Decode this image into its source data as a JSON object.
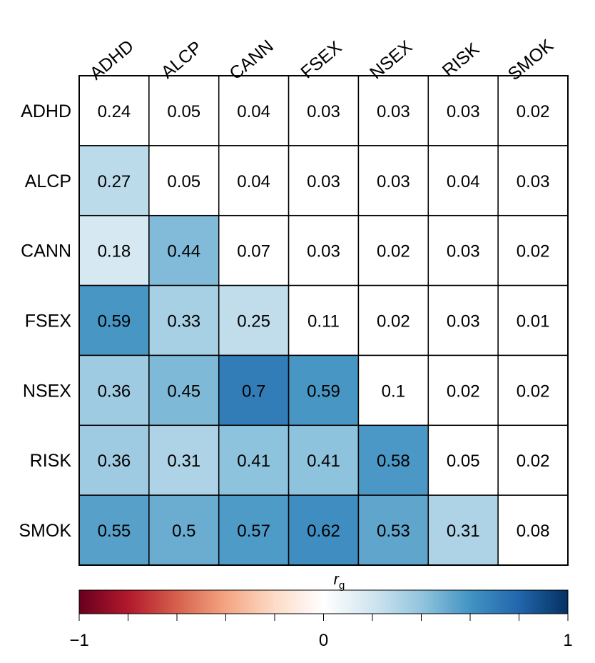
{
  "chart_data": {
    "type": "heatmap",
    "title": "",
    "xlabel": "",
    "ylabel": "",
    "columns": [
      "ADHD",
      "ALCP",
      "CANN",
      "FSEX",
      "NSEX",
      "RISK",
      "SMOK"
    ],
    "rows": [
      "ADHD",
      "ALCP",
      "CANN",
      "FSEX",
      "NSEX",
      "RISK",
      "SMOK"
    ],
    "values": [
      [
        "0.24",
        "0.05",
        "0.04",
        "0.03",
        "0.03",
        "0.03",
        "0.02"
      ],
      [
        "0.27",
        "0.05",
        "0.04",
        "0.03",
        "0.03",
        "0.04",
        "0.03"
      ],
      [
        "0.18",
        "0.44",
        "0.07",
        "0.03",
        "0.02",
        "0.03",
        "0.02"
      ],
      [
        "0.59",
        "0.33",
        "0.25",
        "0.11",
        "0.02",
        "0.03",
        "0.01"
      ],
      [
        "0.36",
        "0.45",
        "0.7",
        "0.59",
        "0.1",
        "0.02",
        "0.02"
      ],
      [
        "0.36",
        "0.31",
        "0.41",
        "0.41",
        "0.58",
        "0.05",
        "0.02"
      ],
      [
        "0.55",
        "0.5",
        "0.57",
        "0.62",
        "0.53",
        "0.31",
        "0.08"
      ]
    ],
    "colored_region": "below-diagonal",
    "colorbar": {
      "title_main": "r",
      "title_sub": "g",
      "range": [
        -1,
        1
      ],
      "tick_labels": [
        "−1",
        "0",
        "1"
      ],
      "tick_values": [
        -1,
        0,
        1
      ],
      "palette": [
        "#67001f",
        "#b2182b",
        "#d6604d",
        "#f4a582",
        "#fddbc7",
        "#ffffff",
        "#d1e5f0",
        "#92c5de",
        "#4393c3",
        "#2166ac",
        "#053061"
      ]
    },
    "grid": true
  }
}
